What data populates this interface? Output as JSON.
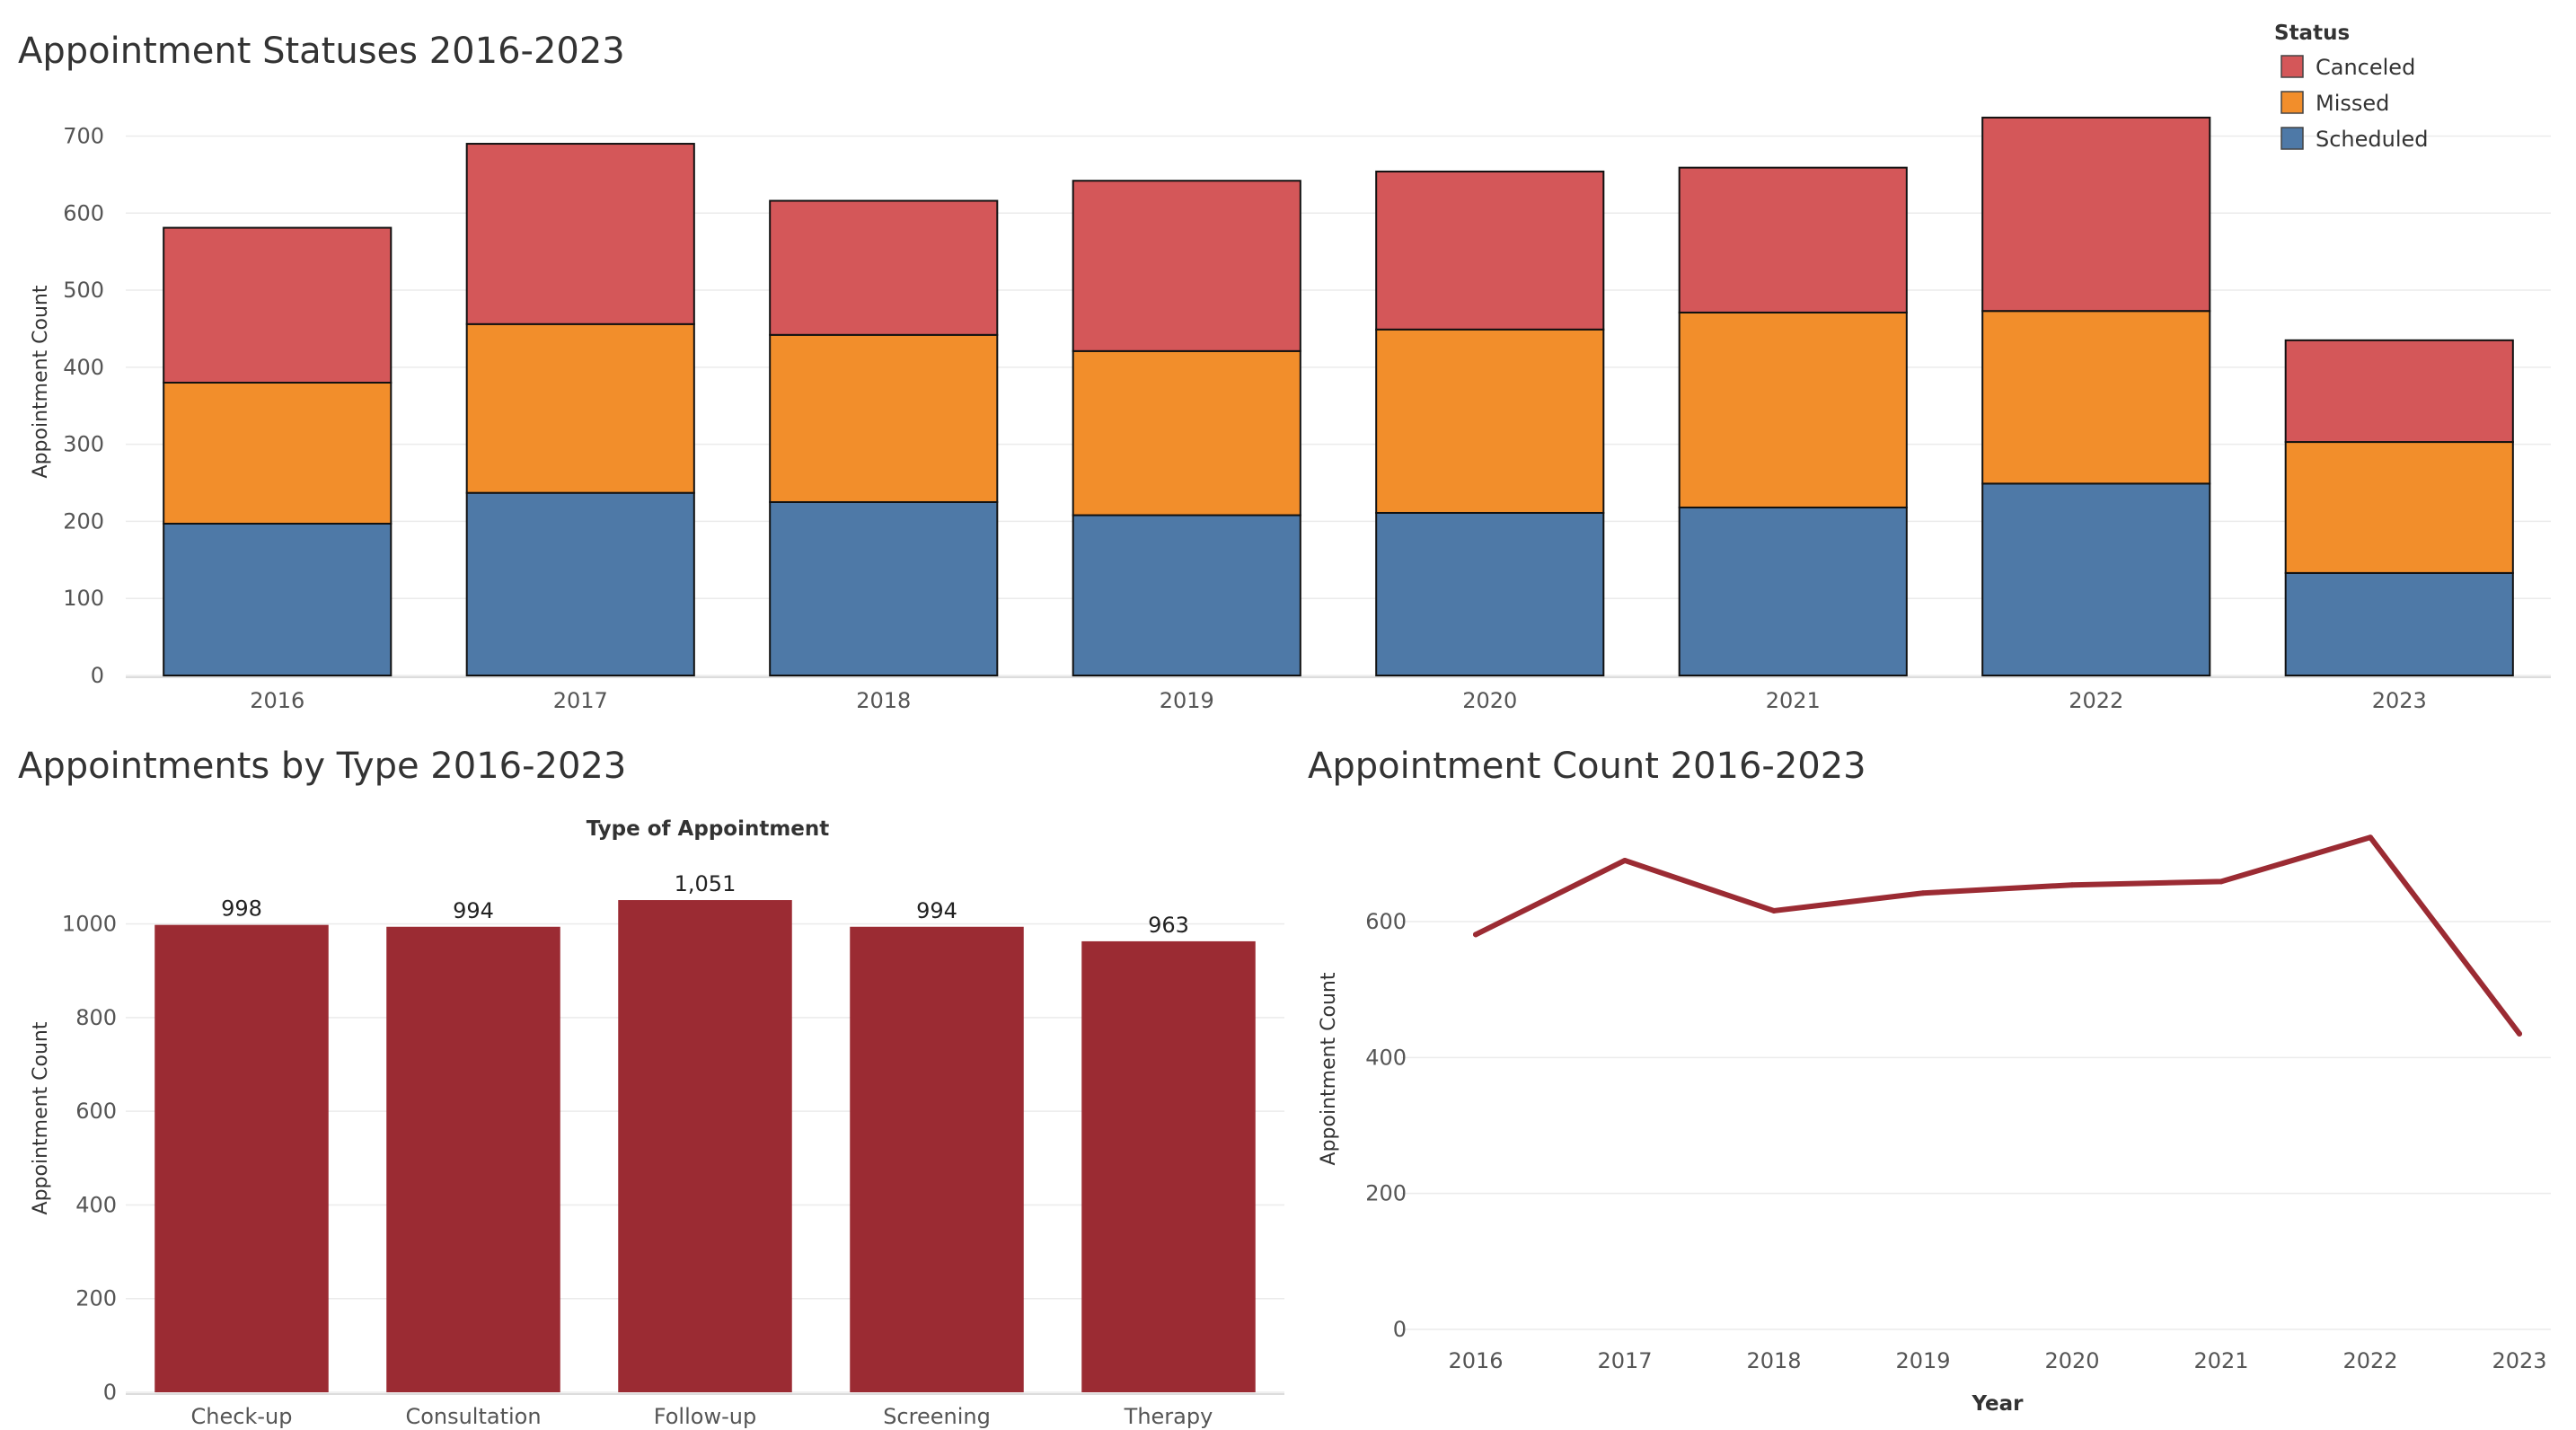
{
  "colors": {
    "canceled": "#d45759",
    "missed": "#f28e2b",
    "scheduled": "#4e79a7",
    "accent": "#9b2b33",
    "grid": "#ebebeb",
    "bar_outline": "#111111"
  },
  "chart_data": [
    {
      "type": "bar",
      "stacked": true,
      "title": "Appointment Statuses 2016-2023",
      "ylabel": "Appointment Count",
      "xlabel": "",
      "categories": [
        "2016",
        "2017",
        "2018",
        "2019",
        "2020",
        "2021",
        "2022",
        "2023"
      ],
      "series": [
        {
          "name": "Scheduled",
          "values": [
            197,
            237,
            225,
            208,
            211,
            218,
            249,
            133
          ]
        },
        {
          "name": "Missed",
          "values": [
            183,
            219,
            217,
            213,
            238,
            253,
            224,
            170
          ]
        },
        {
          "name": "Canceled",
          "values": [
            201,
            234,
            174,
            221,
            205,
            188,
            251,
            132
          ]
        }
      ],
      "yticks": [
        0,
        100,
        200,
        300,
        400,
        500,
        600,
        700
      ],
      "ylim": [
        0,
        760
      ],
      "legend": {
        "title": "Status",
        "position": "top-right",
        "entries": [
          "Canceled",
          "Missed",
          "Scheduled"
        ]
      },
      "grid": true
    },
    {
      "type": "bar",
      "title": "Appointments by Type 2016-2023",
      "xlabel": "Type of Appointment",
      "ylabel": "Appointment Count",
      "categories": [
        "Check-up",
        "Consultation",
        "Follow-up",
        "Screening",
        "Therapy"
      ],
      "values": [
        998,
        994,
        1051,
        994,
        963
      ],
      "data_labels": [
        "998",
        "994",
        "1,051",
        "994",
        "963"
      ],
      "yticks": [
        0,
        200,
        400,
        600,
        800,
        1000
      ],
      "ylim": [
        0,
        1170
      ],
      "grid": true
    },
    {
      "type": "line",
      "title": "Appointment Count 2016-2023",
      "xlabel": "Year",
      "ylabel": "Appointment Count",
      "x": [
        "2016",
        "2017",
        "2018",
        "2019",
        "2020",
        "2021",
        "2022",
        "2023"
      ],
      "series": [
        {
          "name": "",
          "values": [
            581,
            690,
            616,
            642,
            654,
            659,
            724,
            435
          ]
        }
      ],
      "yticks": [
        0,
        200,
        400,
        600
      ],
      "ylim": [
        0,
        760
      ],
      "grid": true
    }
  ]
}
